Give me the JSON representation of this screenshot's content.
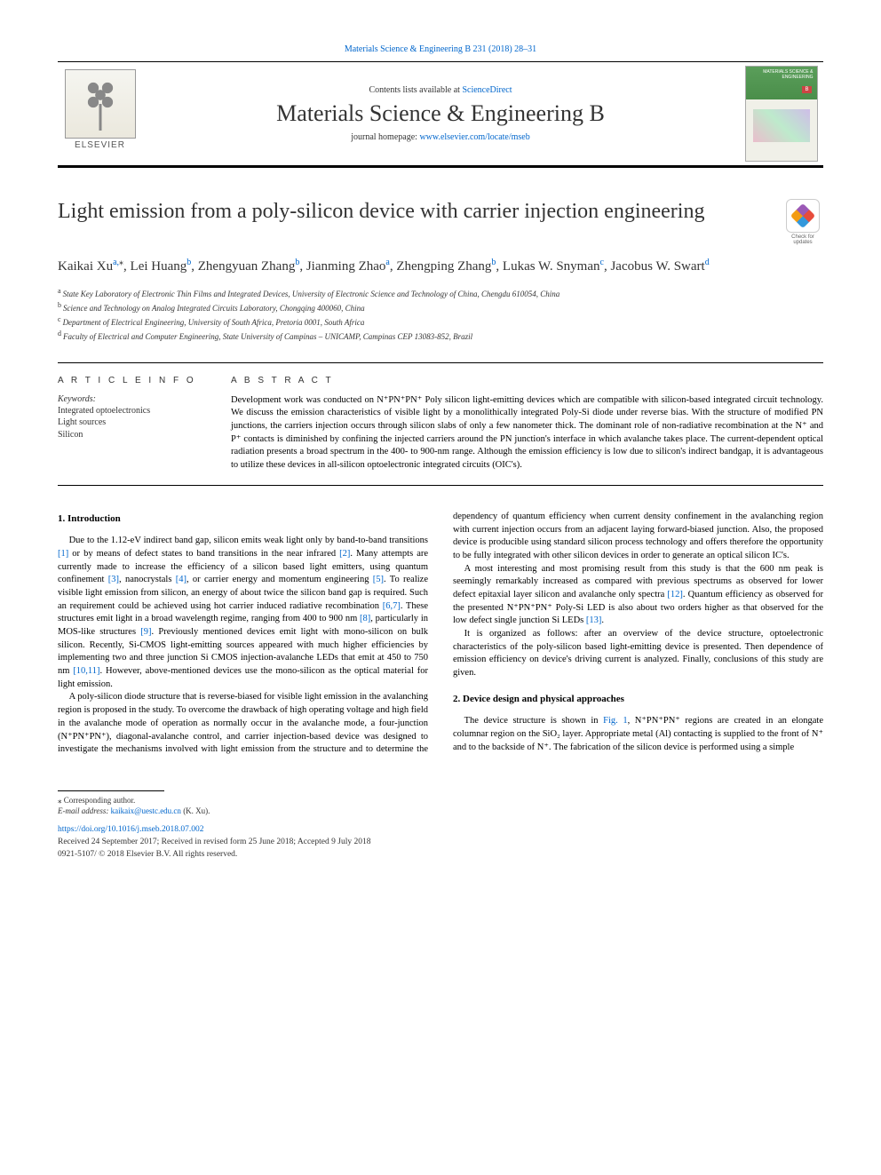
{
  "header": {
    "top_link": "Materials Science & Engineering B 231 (2018) 28–31",
    "contents_prefix": "Contents lists available at ",
    "contents_link": "ScienceDirect",
    "journal_name": "Materials Science & Engineering B",
    "homepage_prefix": "journal homepage: ",
    "homepage_link": "www.elsevier.com/locate/mseb",
    "elsevier_label": "ELSEVIER",
    "check_updates_label": "Check for updates"
  },
  "article": {
    "title": "Light emission from a poly-silicon device with carrier injection engineering",
    "authors_html": "Kaikai Xu<sup>a,</sup><sup class='star'>⁎</sup>, Lei Huang<sup>b</sup>, Zhengyuan Zhang<sup>b</sup>, Jianming Zhao<sup>a</sup>, Zhengping Zhang<sup>b</sup>, Lukas W. Snyman<sup>c</sup>, Jacobus W. Swart<sup>d</sup>",
    "affiliations": [
      {
        "label": "a",
        "text": "State Key Laboratory of Electronic Thin Films and Integrated Devices, University of Electronic Science and Technology of China, Chengdu 610054, China"
      },
      {
        "label": "b",
        "text": "Science and Technology on Analog Integrated Circuits Laboratory, Chongqing 400060, China"
      },
      {
        "label": "c",
        "text": "Department of Electrical Engineering, University of South Africa, Pretoria 0001, South Africa"
      },
      {
        "label": "d",
        "text": "Faculty of Electrical and Computer Engineering, State University of Campinas – UNICAMP, Campinas CEP 13083-852, Brazil"
      }
    ]
  },
  "info": {
    "heading": "A R T I C L E  I N F O",
    "keywords_label": "Keywords:",
    "keywords": [
      "Integrated optoelectronics",
      "Light sources",
      "Silicon"
    ]
  },
  "abstract": {
    "heading": "A B S T R A C T",
    "text": "Development work was conducted on N⁺PN⁺PN⁺ Poly silicon light-emitting devices which are compatible with silicon-based integrated circuit technology. We discuss the emission characteristics of visible light by a monolithically integrated Poly-Si diode under reverse bias. With the structure of modified PN junctions, the carriers injection occurs through silicon slabs of only a few nanometer thick. The dominant role of non-radiative recombination at the N⁺ and P⁺ contacts is diminished by confining the injected carriers around the PN junction's interface in which avalanche takes place. The current-dependent optical radiation presents a broad spectrum in the 400- to 900-nm range. Although the emission efficiency is low due to silicon's indirect bandgap, it is advantageous to utilize these devices in all-silicon optoelectronic integrated circuits (OIC's)."
  },
  "sections": {
    "intro_heading": "1. Introduction",
    "intro_p1": "Due to the 1.12-eV indirect band gap, silicon emits weak light only by band-to-band transitions <span class='ref'>[1]</span> or by means of defect states to band transitions in the near infrared <span class='ref'>[2]</span>. Many attempts are currently made to increase the efficiency of a silicon based light emitters, using quantum confinement <span class='ref'>[3]</span>, nanocrystals <span class='ref'>[4]</span>, or carrier energy and momentum engineering <span class='ref'>[5]</span>. To realize visible light emission from silicon, an energy of about twice the silicon band gap is required. Such an requirement could be achieved using hot carrier induced radiative recombination <span class='ref'>[6,7]</span>. These structures emit light in a broad wavelength regime, ranging from 400 to 900 nm <span class='ref'>[8]</span>, particularly in MOS-like structures <span class='ref'>[9]</span>. Previously mentioned devices emit light with mono-silicon on bulk silicon. Recently, Si-CMOS light-emitting sources appeared with much higher efficiencies by implementing two and three junction Si CMOS injection-avalanche LEDs that emit at 450 to 750 nm <span class='ref'>[10,11]</span>. However, above-mentioned devices use the mono-silicon as the optical material for light emission.",
    "intro_p2": "A poly-silicon diode structure that is reverse-biased for visible light emission in the avalanching region is proposed in the study. To overcome the drawback of high operating voltage and high field in the avalanche mode of operation as normally occur in the avalanche mode, a four-junction (N⁺PN⁺PN⁺), diagonal-avalanche control, and carrier injection-based device was designed to investigate the mechanisms involved with light emission from the structure and to determine the dependency of quantum efficiency when current density confinement in the avalanching region with current injection occurs from an adjacent laying forward-biased junction. Also, the proposed device is producible using standard silicon process technology and offers therefore the opportunity to be fully integrated with other silicon devices in order to generate an optical silicon IC's.",
    "intro_p3": "A most interesting and most promising result from this study is that the 600 nm peak is seemingly remarkably increased as compared with previous spectrums as observed for lower defect epitaxial layer silicon and avalanche only spectra <span class='ref'>[12]</span>. Quantum efficiency as observed for the presented N⁺PN⁺PN⁺ Poly-Si LED is also about two orders higher as that observed for the low defect single junction Si LEDs <span class='ref'>[13]</span>.",
    "intro_p4": "It is organized as follows: after an overview of the device structure, optoelectronic characteristics of the poly-silicon based light-emitting device is presented. Then dependence of emission efficiency on device's driving current is analyzed. Finally, conclusions of this study are given.",
    "design_heading": "2. Device design and physical approaches",
    "design_p1": "The device structure is shown in <span class='ref'>Fig. 1</span>, N⁺PN⁺PN⁺ regions are created in an elongate columnar region on the SiO₂ layer. Appropriate metal (Al) contacting is supplied to the front of N⁺ and to the backside of N⁺. The fabrication of the silicon device is performed using a simple"
  },
  "footer": {
    "corresponding": "⁎ Corresponding author.",
    "email_label": "E-mail address: ",
    "email": "kaikaix@uestc.edu.cn",
    "email_suffix": " (K. Xu).",
    "doi": "https://doi.org/10.1016/j.mseb.2018.07.002",
    "received": "Received 24 September 2017; Received in revised form 25 June 2018; Accepted 9 July 2018",
    "copyright": "0921-5107/ © 2018 Elsevier B.V. All rights reserved."
  },
  "colors": {
    "link": "#0066cc",
    "text": "#000000",
    "rule": "#000000"
  }
}
